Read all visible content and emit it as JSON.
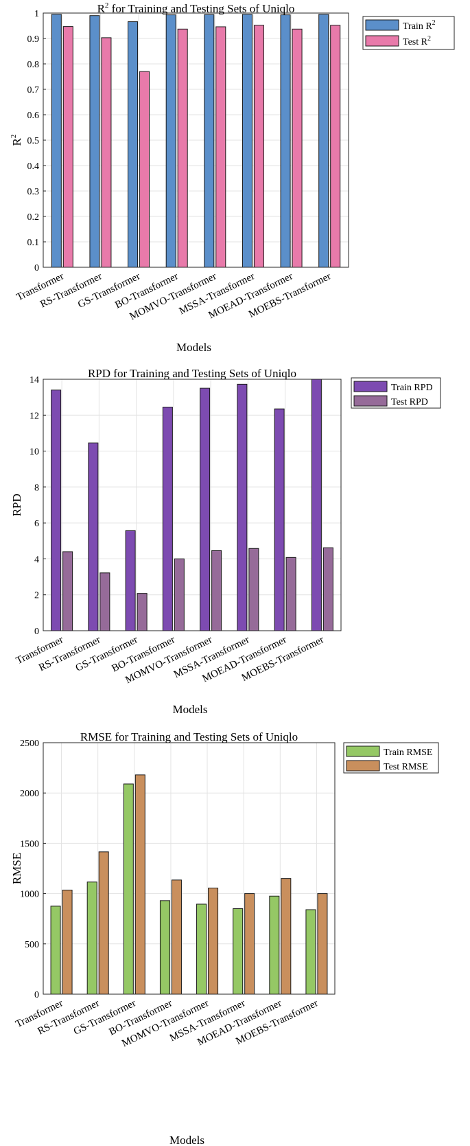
{
  "colors": {
    "r2_train": "#5b8fca",
    "r2_test": "#e87aaa",
    "rpd_train": "#7d4bb1",
    "rpd_test": "#966b99",
    "rmse_train": "#95c865",
    "rmse_test": "#c98f5d"
  },
  "chart_data": [
    {
      "type": "bar",
      "title": "R",
      "title_sup": "2",
      "title_rest": " for Training and Testing Sets of Uniqlo",
      "xlabel": "Models",
      "ylabel": "R",
      "ylabel_sup": "2",
      "ylim": [
        0,
        1
      ],
      "yticks": [
        "0",
        "0.1",
        "0.2",
        "0.3",
        "0.4",
        "0.5",
        "0.6",
        "0.7",
        "0.8",
        "0.9",
        "1"
      ],
      "legend_position": "top-right",
      "categories": [
        "Transformer",
        "RS-Transformer",
        "GS-Transformer",
        "BO-Transformer",
        "MOMVO-Transformer",
        "MSSA-Transformer",
        "MOEAD-Transformer",
        "MOEBS-Transformer"
      ],
      "series": [
        {
          "name": "Train R",
          "name_sup": "2",
          "color_key": "r2_train",
          "values": [
            0.995,
            0.99,
            0.966,
            0.993,
            0.994,
            0.995,
            0.993,
            0.995
          ]
        },
        {
          "name": "Test R",
          "name_sup": "2",
          "color_key": "r2_test",
          "values": [
            0.947,
            0.903,
            0.77,
            0.937,
            0.946,
            0.952,
            0.937,
            0.952
          ]
        }
      ]
    },
    {
      "type": "bar",
      "title": "RPD for Training and Testing Sets of Uniqlo",
      "xlabel": "Models",
      "ylabel": "RPD",
      "ylim": [
        0,
        14
      ],
      "yticks": [
        "0",
        "2",
        "4",
        "6",
        "8",
        "10",
        "12",
        "14"
      ],
      "legend_position": "top-right",
      "categories": [
        "Transformer",
        "RS-Transformer",
        "GS-Transformer",
        "BO-Transformer",
        "MOMVO-Transformer",
        "MSSA-Transformer",
        "MOEAD-Transformer",
        "MOEBS-Transformer"
      ],
      "series": [
        {
          "name": "Train RPD",
          "color_key": "rpd_train",
          "values": [
            13.4,
            10.45,
            5.57,
            12.45,
            13.5,
            13.72,
            12.35,
            14.0
          ]
        },
        {
          "name": "Test RPD",
          "color_key": "rpd_test",
          "values": [
            4.4,
            3.22,
            2.08,
            4.0,
            4.46,
            4.58,
            4.08,
            4.62
          ]
        }
      ]
    },
    {
      "type": "bar",
      "title": "RMSE for Training and Testing Sets of Uniqlo",
      "xlabel": "Models",
      "ylabel": "RMSE",
      "ylim": [
        0,
        2500
      ],
      "yticks": [
        "0",
        "500",
        "1000",
        "1500",
        "2000",
        "2500"
      ],
      "legend_position": "top-right",
      "categories": [
        "Transformer",
        "RS-Transformer",
        "GS-Transformer",
        "BO-Transformer",
        "MOMVO-Transformer",
        "MSSA-Transformer",
        "MOEAD-Transformer",
        "MOEBS-Transformer"
      ],
      "series": [
        {
          "name": "Train RMSE",
          "color_key": "rmse_train",
          "values": [
            875,
            1115,
            2090,
            930,
            895,
            850,
            975,
            840
          ]
        },
        {
          "name": "Test RMSE",
          "color_key": "rmse_test",
          "values": [
            1035,
            1415,
            2180,
            1135,
            1055,
            1000,
            1150,
            1000
          ]
        }
      ]
    }
  ]
}
